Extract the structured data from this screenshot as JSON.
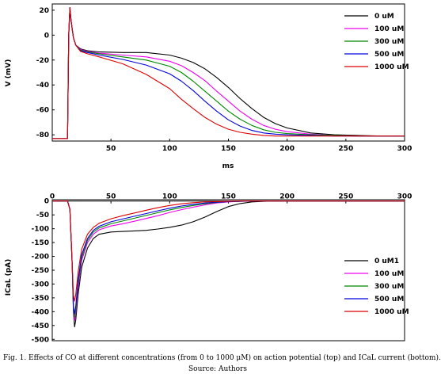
{
  "caption": "Fig. 1. Effects of CO at different concentrations (from 0 to 1000 μM) on action potential (top) and ICaL current (bottom).",
  "source": "Source: Authors",
  "chart_data": [
    {
      "type": "line",
      "title": "",
      "xlabel": "ms",
      "ylabel": "V (mV)",
      "xlim": [
        0,
        300
      ],
      "ylim": [
        -85,
        25
      ],
      "xticks": [
        50,
        100,
        150,
        200,
        250,
        300
      ],
      "yticks": [
        20,
        0,
        -20,
        -40,
        -60,
        -80
      ],
      "grid": false,
      "legend": "top-right",
      "series": [
        {
          "name": "0 uM",
          "color": "#000000",
          "x": [
            0,
            13,
            14,
            15,
            16,
            17,
            18,
            20,
            24,
            30,
            40,
            60,
            80,
            100,
            110,
            120,
            130,
            140,
            150,
            160,
            170,
            180,
            190,
            200,
            220,
            240,
            260,
            280,
            300
          ],
          "y": [
            -83,
            -83,
            0,
            22,
            12,
            5,
            -2,
            -8,
            -11,
            -12.5,
            -13.5,
            -14,
            -14,
            -16,
            -18.5,
            -22,
            -27,
            -34,
            -42,
            -51,
            -59,
            -66,
            -71,
            -74.5,
            -78.5,
            -80,
            -80.5,
            -81,
            -81
          ]
        },
        {
          "name": "100 uM",
          "color": "#ee00ee",
          "x": [
            0,
            13,
            14,
            15,
            16,
            17,
            18,
            20,
            24,
            30,
            40,
            60,
            80,
            100,
            110,
            120,
            130,
            140,
            150,
            160,
            170,
            180,
            190,
            200,
            220,
            240,
            260,
            280,
            300
          ],
          "y": [
            -83,
            -83,
            0,
            22,
            12,
            5,
            -2,
            -8,
            -11.5,
            -13,
            -14.5,
            -16,
            -17.5,
            -21,
            -24.5,
            -30,
            -36.5,
            -45,
            -53,
            -61,
            -67.5,
            -72.5,
            -75.5,
            -77.5,
            -79.5,
            -80.5,
            -81,
            -81,
            -81
          ]
        },
        {
          "name": "300 uM",
          "color": "#008800",
          "x": [
            0,
            13,
            14,
            15,
            16,
            17,
            18,
            20,
            24,
            30,
            40,
            60,
            80,
            100,
            110,
            120,
            130,
            140,
            150,
            160,
            170,
            180,
            190,
            200,
            220,
            240,
            260,
            280,
            300
          ],
          "y": [
            -83,
            -83,
            0,
            22,
            12,
            5,
            -2,
            -8,
            -12,
            -13.5,
            -15,
            -17.5,
            -20,
            -25,
            -30,
            -37,
            -45,
            -53,
            -61,
            -67.5,
            -72.5,
            -76,
            -78,
            -79,
            -80,
            -80.5,
            -81,
            -81,
            -81
          ]
        },
        {
          "name": "500 uM",
          "color": "#0000dd",
          "x": [
            0,
            13,
            14,
            15,
            16,
            17,
            18,
            20,
            24,
            30,
            40,
            60,
            80,
            100,
            110,
            120,
            130,
            140,
            150,
            160,
            170,
            180,
            190,
            200,
            220,
            240,
            260,
            280,
            300
          ],
          "y": [
            -83,
            -83,
            0,
            22,
            12,
            5,
            -2,
            -8,
            -12.5,
            -14,
            -16,
            -19.5,
            -24,
            -31,
            -37,
            -44.5,
            -53,
            -61,
            -68,
            -73,
            -76.5,
            -78.5,
            -79.5,
            -80,
            -80.5,
            -81,
            -81,
            -81,
            -81
          ]
        },
        {
          "name": "1000 uM",
          "color": "#dd0000",
          "x": [
            0,
            13,
            14,
            15,
            16,
            17,
            18,
            20,
            24,
            30,
            40,
            60,
            80,
            100,
            110,
            120,
            130,
            140,
            150,
            160,
            170,
            180,
            190,
            200,
            220,
            240,
            260,
            280,
            300
          ],
          "y": [
            -83,
            -83,
            0,
            22,
            12,
            5,
            -2,
            -8,
            -13,
            -15,
            -17.5,
            -23,
            -31.5,
            -43,
            -51.5,
            -59,
            -66,
            -71.5,
            -75.5,
            -78,
            -79.5,
            -80.5,
            -81,
            -81,
            -81,
            -81,
            -81,
            -81,
            -81
          ]
        }
      ]
    },
    {
      "type": "line",
      "title": "",
      "xlabel": "",
      "ylabel": "ICaL (pA)",
      "xlim": [
        0,
        300
      ],
      "ylim": [
        -505,
        5
      ],
      "xticks": [
        0,
        50,
        100,
        150,
        200,
        250,
        300
      ],
      "yticks": [
        0,
        -50,
        -100,
        -150,
        -200,
        -250,
        -300,
        -350,
        -400,
        -450,
        -500
      ],
      "x_axis_position": "top",
      "grid": false,
      "legend": "bottom-right",
      "series": [
        {
          "name": "0 uM1",
          "color": "#000000",
          "x": [
            0,
            13,
            15,
            17,
            18,
            19,
            20,
            22,
            25,
            30,
            35,
            40,
            50,
            60,
            70,
            80,
            90,
            100,
            110,
            120,
            130,
            140,
            150,
            160,
            170,
            180,
            190,
            200,
            250,
            300
          ],
          "y": [
            0,
            0,
            -30,
            -230,
            -400,
            -455,
            -430,
            -340,
            -240,
            -170,
            -135,
            -120,
            -112,
            -110,
            -108,
            -106,
            -101,
            -95,
            -87,
            -75,
            -58,
            -38,
            -20,
            -9,
            -3,
            -1,
            0,
            0,
            0,
            0
          ]
        },
        {
          "name": "100 uM",
          "color": "#ee00ee",
          "x": [
            0,
            13,
            15,
            17,
            18,
            19,
            20,
            22,
            25,
            30,
            35,
            40,
            50,
            60,
            70,
            80,
            90,
            100,
            110,
            120,
            130,
            140,
            150,
            160,
            170,
            180,
            190,
            200,
            250,
            300
          ],
          "y": [
            0,
            0,
            -30,
            -230,
            -390,
            -432,
            -405,
            -315,
            -215,
            -150,
            -120,
            -104,
            -90,
            -82,
            -73,
            -63,
            -53,
            -41,
            -31,
            -22,
            -14,
            -7,
            -3,
            -1,
            0,
            0,
            0,
            0,
            0,
            0
          ]
        },
        {
          "name": "300 uM",
          "color": "#008800",
          "x": [
            0,
            13,
            15,
            17,
            18,
            19,
            20,
            22,
            25,
            30,
            35,
            40,
            50,
            60,
            70,
            80,
            90,
            100,
            110,
            120,
            130,
            140,
            150,
            160,
            170,
            180,
            190,
            200,
            250,
            300
          ],
          "y": [
            0,
            0,
            -30,
            -230,
            -385,
            -420,
            -392,
            -300,
            -205,
            -142,
            -112,
            -97,
            -82,
            -72,
            -62,
            -52,
            -42,
            -32,
            -23,
            -16,
            -10,
            -5,
            -2,
            -1,
            0,
            0,
            0,
            0,
            0,
            0
          ]
        },
        {
          "name": "500 uM",
          "color": "#0000dd",
          "x": [
            0,
            13,
            15,
            17,
            18,
            19,
            20,
            22,
            25,
            30,
            35,
            40,
            50,
            60,
            70,
            80,
            90,
            100,
            110,
            120,
            130,
            140,
            150,
            160,
            170,
            180,
            190,
            200,
            250,
            300
          ],
          "y": [
            0,
            0,
            -30,
            -230,
            -378,
            -408,
            -380,
            -288,
            -195,
            -135,
            -106,
            -91,
            -75,
            -65,
            -55,
            -45,
            -35,
            -26,
            -18,
            -12,
            -7,
            -4,
            -2,
            -1,
            0,
            0,
            0,
            0,
            0,
            0
          ]
        },
        {
          "name": "1000 uM",
          "color": "#dd0000",
          "x": [
            0,
            13,
            15,
            17,
            18,
            19,
            20,
            22,
            25,
            30,
            35,
            40,
            50,
            60,
            70,
            80,
            90,
            100,
            110,
            120,
            130,
            140,
            150,
            160,
            170,
            180,
            190,
            200,
            250,
            300
          ],
          "y": [
            0,
            0,
            -30,
            -225,
            -340,
            -362,
            -338,
            -258,
            -175,
            -120,
            -95,
            -80,
            -64,
            -53,
            -43,
            -33,
            -24,
            -16,
            -10,
            -6,
            -3,
            -2,
            -1,
            0,
            0,
            0,
            0,
            0,
            0,
            0
          ]
        }
      ]
    }
  ]
}
